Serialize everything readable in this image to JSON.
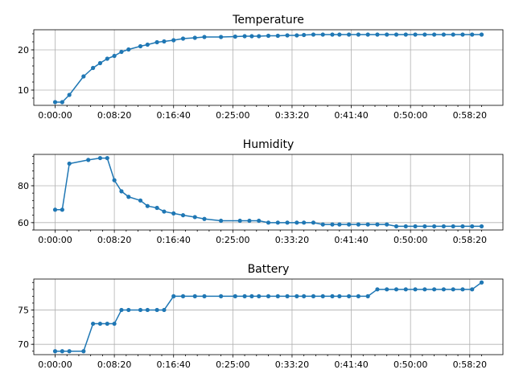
{
  "chart_data": [
    {
      "type": "line",
      "title": "Temperature",
      "xlabel": "",
      "ylabel": "",
      "grid": true,
      "x_tick_labels": [
        "0:00:00",
        "0:08:20",
        "0:16:40",
        "0:25:00",
        "0:33:20",
        "0:41:40",
        "0:50:00",
        "0:58:20"
      ],
      "x_tick_seconds": [
        0,
        500,
        1000,
        1500,
        2000,
        2500,
        3000,
        3500
      ],
      "xlim_seconds": [
        -180,
        3780
      ],
      "y_ticks": [
        10,
        20
      ],
      "ylim": [
        6.2,
        25.0
      ],
      "x_seconds": [
        0,
        60,
        120,
        240,
        320,
        380,
        440,
        500,
        560,
        620,
        720,
        780,
        860,
        920,
        1000,
        1080,
        1180,
        1260,
        1400,
        1520,
        1600,
        1660,
        1720,
        1800,
        1880,
        1960,
        2040,
        2100,
        2180,
        2260,
        2340,
        2400,
        2480,
        2560,
        2640,
        2720,
        2800,
        2880,
        2960,
        3040,
        3120,
        3200,
        3280,
        3360,
        3440,
        3520,
        3600
      ],
      "values": [
        7.0,
        7.0,
        8.8,
        13.4,
        15.5,
        16.7,
        17.8,
        18.5,
        19.5,
        20.1,
        20.9,
        21.3,
        21.9,
        22.1,
        22.4,
        22.8,
        23.0,
        23.2,
        23.2,
        23.3,
        23.4,
        23.4,
        23.4,
        23.5,
        23.5,
        23.6,
        23.6,
        23.7,
        23.8,
        23.8,
        23.8,
        23.8,
        23.8,
        23.8,
        23.8,
        23.8,
        23.8,
        23.8,
        23.8,
        23.8,
        23.8,
        23.8,
        23.8,
        23.8,
        23.8,
        23.8,
        23.8
      ]
    },
    {
      "type": "line",
      "title": "Humidity",
      "xlabel": "",
      "ylabel": "",
      "grid": true,
      "x_tick_labels": [
        "0:00:00",
        "0:08:20",
        "0:16:40",
        "0:25:00",
        "0:33:20",
        "0:41:40",
        "0:50:00",
        "0:58:20"
      ],
      "x_tick_seconds": [
        0,
        500,
        1000,
        1500,
        2000,
        2500,
        3000,
        3500
      ],
      "xlim_seconds": [
        -180,
        3780
      ],
      "y_ticks": [
        60,
        80
      ],
      "ylim": [
        56.0,
        97.0
      ],
      "x_seconds": [
        0,
        60,
        120,
        280,
        380,
        440,
        500,
        560,
        620,
        720,
        780,
        860,
        920,
        1000,
        1080,
        1180,
        1260,
        1400,
        1560,
        1640,
        1720,
        1800,
        1880,
        1960,
        2040,
        2100,
        2180,
        2260,
        2340,
        2400,
        2480,
        2560,
        2640,
        2720,
        2800,
        2880,
        2960,
        3040,
        3120,
        3200,
        3280,
        3360,
        3440,
        3520,
        3600
      ],
      "values": [
        67,
        67,
        92,
        94,
        95,
        95,
        83,
        77,
        74,
        72,
        69,
        68,
        66,
        65,
        64,
        63,
        62,
        61,
        61,
        61,
        61,
        60,
        60,
        60,
        60,
        60,
        60,
        59,
        59,
        59,
        59,
        59,
        59,
        59,
        59,
        58,
        58,
        58,
        58,
        58,
        58,
        58,
        58,
        58,
        58
      ]
    },
    {
      "type": "line",
      "title": "Battery",
      "xlabel": "",
      "ylabel": "",
      "grid": true,
      "x_tick_labels": [
        "0:00:00",
        "0:08:20",
        "0:16:40",
        "0:25:00",
        "0:33:20",
        "0:41:40",
        "0:50:00",
        "0:58:20"
      ],
      "x_tick_seconds": [
        0,
        500,
        1000,
        1500,
        2000,
        2500,
        3000,
        3500
      ],
      "xlim_seconds": [
        -180,
        3780
      ],
      "y_ticks": [
        70,
        75
      ],
      "ylim": [
        68.5,
        79.5
      ],
      "x_seconds": [
        0,
        60,
        120,
        240,
        320,
        380,
        440,
        500,
        560,
        620,
        720,
        780,
        860,
        920,
        1000,
        1080,
        1180,
        1260,
        1400,
        1520,
        1600,
        1660,
        1720,
        1800,
        1880,
        1960,
        2040,
        2100,
        2180,
        2260,
        2340,
        2400,
        2480,
        2560,
        2640,
        2720,
        2800,
        2880,
        2960,
        3040,
        3120,
        3200,
        3280,
        3360,
        3440,
        3520,
        3600
      ],
      "values": [
        69,
        69,
        69,
        69,
        73,
        73,
        73,
        73,
        75,
        75,
        75,
        75,
        75,
        75,
        77,
        77,
        77,
        77,
        77,
        77,
        77,
        77,
        77,
        77,
        77,
        77,
        77,
        77,
        77,
        77,
        77,
        77,
        77,
        77,
        77,
        78,
        78,
        78,
        78,
        78,
        78,
        78,
        78,
        78,
        78,
        78,
        79
      ]
    }
  ]
}
